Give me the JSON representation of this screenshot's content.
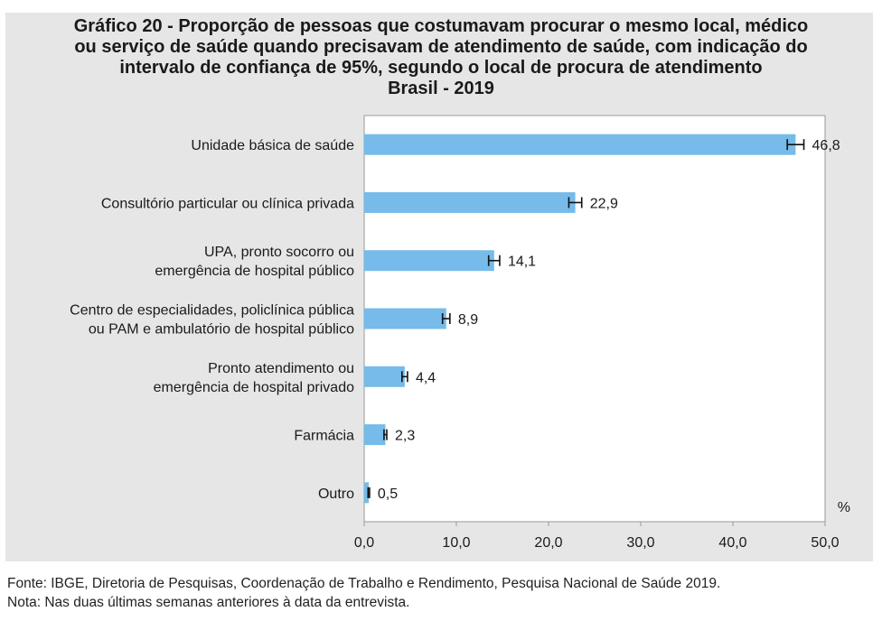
{
  "chart_data": {
    "type": "bar",
    "orientation": "horizontal",
    "title_lines": [
      "Gráfico 20 - Proporção de pessoas que costumavam procurar o mesmo local, médico",
      "ou serviço de saúde quando precisavam de atendimento de saúde, com indicação do",
      "intervalo de confiança de 95%, segundo o local de procura de atendimento",
      "Brasil - 2019"
    ],
    "categories": [
      [
        "Unidade básica de saúde"
      ],
      [
        "Consultório particular ou clínica privada"
      ],
      [
        "UPA, pronto socorro ou",
        "emergência de hospital público"
      ],
      [
        "Centro de especialidades, policlínica pública",
        "ou PAM e ambulatório de hospital público"
      ],
      [
        "Pronto atendimento ou",
        "emergência de hospital privado"
      ],
      [
        "Farmácia"
      ],
      [
        "Outro"
      ]
    ],
    "values": [
      46.8,
      22.9,
      14.1,
      8.9,
      4.4,
      2.3,
      0.5
    ],
    "value_labels": [
      "46,8",
      "22,9",
      "14,1",
      "8,9",
      "4,4",
      "2,3",
      "0,5"
    ],
    "ci_half_width": [
      0.9,
      0.7,
      0.6,
      0.4,
      0.3,
      0.15,
      0.08
    ],
    "unit": "%",
    "xlim": [
      0,
      50
    ],
    "xticks": [
      0,
      10,
      20,
      30,
      40,
      50
    ],
    "xtick_labels": [
      "0,0",
      "10,0",
      "20,0",
      "30,0",
      "40,0",
      "50,0"
    ],
    "bar_color": "#76bbe9",
    "grid": false,
    "legend": "none"
  },
  "footer": {
    "source": "Fonte: IBGE, Diretoria de Pesquisas, Coordenação de Trabalho e Rendimento, Pesquisa Nacional de Saúde 2019.",
    "note": "Nota: Nas duas últimas semanas anteriores à data da entrevista."
  }
}
